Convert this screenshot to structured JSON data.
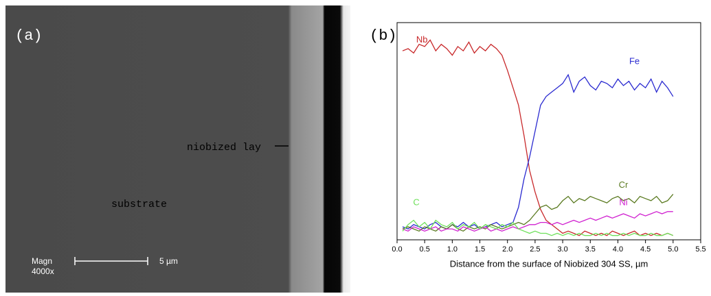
{
  "image": {
    "panel_label": "(a)",
    "layer_label": "niobized lay",
    "substrate_label": "substrate",
    "magn_label": "Magn",
    "magn_value": "4000x",
    "scale_label": "5 µm"
  },
  "chart_data": {
    "type": "line",
    "panel_label": "(b)",
    "xlabel": "Distance from the surface of Niobized 304 SS, µm",
    "xlim": [
      0,
      5.5
    ],
    "ylim": [
      0,
      100
    ],
    "xticks": [
      {
        "value": 0,
        "label": "0.0"
      },
      0.5,
      {
        "value": 1,
        "label": "1.0"
      },
      1.5,
      {
        "value": 2,
        "label": "2.0"
      },
      2.5,
      {
        "value": 3,
        "label": "3.0"
      },
      3.5,
      {
        "value": 4,
        "label": "4.0"
      },
      4.5,
      {
        "value": 5,
        "label": "5.0"
      },
      5.5
    ],
    "x": [
      0.1,
      0.2,
      0.3,
      0.4,
      0.5,
      0.6,
      0.7,
      0.8,
      0.9,
      1.0,
      1.1,
      1.2,
      1.3,
      1.4,
      1.5,
      1.6,
      1.7,
      1.8,
      1.9,
      2.0,
      2.1,
      2.2,
      2.3,
      2.4,
      2.5,
      2.6,
      2.7,
      2.8,
      2.9,
      3.0,
      3.1,
      3.2,
      3.3,
      3.4,
      3.5,
      3.6,
      3.7,
      3.8,
      3.9,
      4.0,
      4.1,
      4.2,
      4.3,
      4.4,
      4.5,
      4.6,
      4.7,
      4.8,
      4.9,
      5.0
    ],
    "series": [
      {
        "name": "Nb",
        "color": "#c8282a",
        "values": [
          87,
          88,
          86,
          90,
          89,
          92,
          87,
          90,
          88,
          85,
          89,
          87,
          91,
          86,
          89,
          87,
          90,
          88,
          85,
          78,
          70,
          62,
          48,
          32,
          22,
          14,
          9,
          7,
          5,
          3,
          4,
          3,
          2,
          4,
          3,
          2,
          3,
          2,
          4,
          3,
          2,
          3,
          4,
          2,
          3,
          2,
          3,
          2,
          3,
          2
        ]
      },
      {
        "name": "Fe",
        "color": "#2a2ad0",
        "values": [
          6,
          5,
          7,
          6,
          5,
          7,
          8,
          6,
          5,
          7,
          6,
          8,
          6,
          7,
          5,
          6,
          7,
          8,
          6,
          7,
          8,
          15,
          28,
          38,
          50,
          62,
          66,
          68,
          70,
          72,
          76,
          68,
          73,
          75,
          71,
          69,
          73,
          72,
          70,
          74,
          71,
          73,
          69,
          72,
          70,
          74,
          68,
          73,
          70,
          66
        ]
      },
      {
        "name": "Cr",
        "color": "#5a7a20",
        "values": [
          5,
          6,
          5,
          4,
          6,
          5,
          4,
          6,
          5,
          7,
          5,
          4,
          6,
          5,
          6,
          5,
          7,
          6,
          5,
          6,
          7,
          8,
          7,
          9,
          12,
          15,
          16,
          14,
          15,
          18,
          20,
          17,
          19,
          18,
          20,
          19,
          18,
          17,
          19,
          20,
          18,
          19,
          17,
          20,
          19,
          18,
          20,
          17,
          18,
          21
        ]
      },
      {
        "name": "Ni",
        "color": "#d020d0",
        "values": [
          5,
          4,
          6,
          5,
          4,
          5,
          6,
          4,
          5,
          5,
          4,
          6,
          5,
          4,
          5,
          6,
          4,
          5,
          4,
          5,
          6,
          5,
          6,
          7,
          7,
          8,
          8,
          7,
          8,
          7,
          8,
          9,
          8,
          9,
          10,
          9,
          10,
          11,
          10,
          11,
          12,
          11,
          10,
          12,
          11,
          12,
          13,
          12,
          13,
          13
        ]
      },
      {
        "name": "C",
        "color": "#6ee05a",
        "values": [
          4,
          7,
          9,
          6,
          8,
          5,
          9,
          7,
          6,
          8,
          5,
          7,
          6,
          8,
          5,
          7,
          6,
          5,
          7,
          6,
          8,
          5,
          4,
          3,
          4,
          3,
          3,
          2,
          3,
          2,
          3,
          2,
          3,
          2,
          2,
          3,
          2,
          3,
          2,
          2,
          3,
          2,
          3,
          2,
          2,
          3,
          2,
          2,
          3,
          2
        ]
      }
    ]
  }
}
